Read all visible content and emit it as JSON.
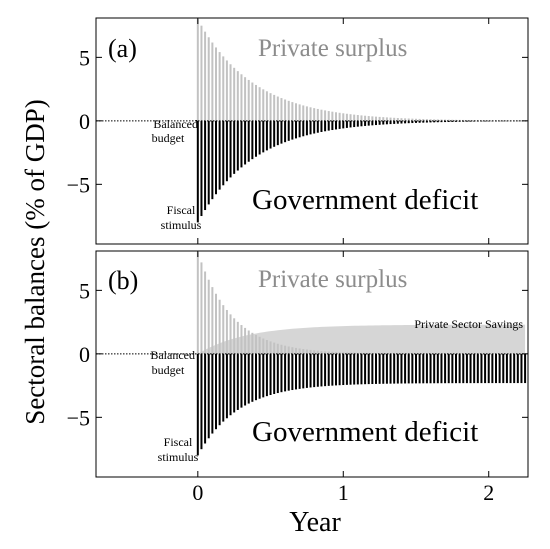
{
  "figure": {
    "ylabel": "Sectoral balances (% of GDP)",
    "xlabel": "Year",
    "xticks": [
      0,
      1,
      2
    ],
    "yticks": [
      5,
      0,
      -5
    ]
  },
  "colors": {
    "surplus": "#c2c2c2",
    "deficit": "#000000",
    "surplus_text": "#8c8c8c",
    "savings_area": "#b5b5b5"
  },
  "chart_data": [
    {
      "type": "bar",
      "panel_label": "(a)",
      "xlim": [
        -0.7,
        2.27
      ],
      "ylim": [
        -9.7,
        8.1
      ],
      "x_range": [
        0,
        2.25
      ],
      "bar_step": 0.025,
      "surplus_series": {
        "start": 8.0,
        "end": 0.0,
        "decay_per_year": 2.6
      },
      "deficit_series": {
        "start": -8.0,
        "end": 0.0,
        "decay_per_year": 2.6
      },
      "annotations": {
        "surplus_label": "Private surplus",
        "deficit_label": "Government deficit",
        "balanced_line1": "Balanced",
        "balanced_line2": "budget",
        "stimulus_line1": "Fiscal",
        "stimulus_line2": "stimulus"
      }
    },
    {
      "type": "bar",
      "panel_label": "(b)",
      "xlim": [
        -0.7,
        2.27
      ],
      "ylim": [
        -9.7,
        8.1
      ],
      "x_range": [
        0,
        2.25
      ],
      "bar_step": 0.025,
      "surplus_series": {
        "start": 8.0,
        "end": 0.0,
        "decay_per_year": 4.2
      },
      "deficit_series": {
        "start": -8.0,
        "end": -2.3,
        "decay_per_year": 3.6
      },
      "savings_series": {
        "start": 0.0,
        "end": 2.3,
        "rise_per_year": 3.0
      },
      "annotations": {
        "surplus_label": "Private surplus",
        "deficit_label": "Government deficit",
        "balanced_line1": "Balanced",
        "balanced_line2": "budget",
        "stimulus_line1": "Fiscal",
        "stimulus_line2": "stimulus",
        "savings_label": "Private Sector Savings"
      }
    }
  ]
}
